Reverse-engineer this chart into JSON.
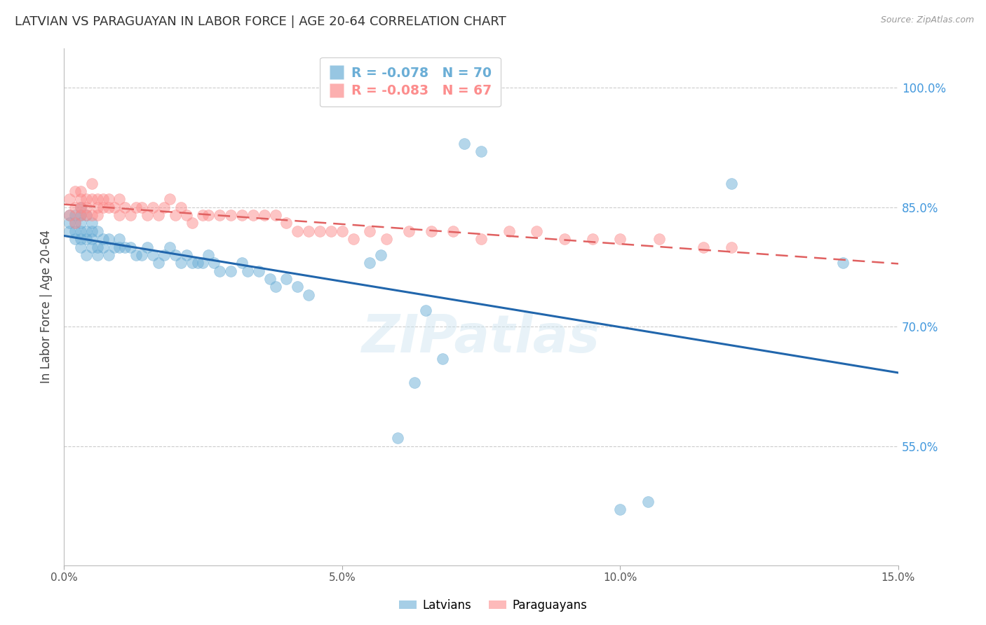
{
  "title": "LATVIAN VS PARAGUAYAN IN LABOR FORCE | AGE 20-64 CORRELATION CHART",
  "source": "Source: ZipAtlas.com",
  "ylabel": "In Labor Force | Age 20-64",
  "xlim": [
    0.0,
    0.15
  ],
  "ylim": [
    0.4,
    1.05
  ],
  "yticks": [
    0.55,
    0.7,
    0.85,
    1.0
  ],
  "ytick_labels": [
    "55.0%",
    "70.0%",
    "85.0%",
    "100.0%"
  ],
  "xticks": [
    0.0,
    0.05,
    0.1,
    0.15
  ],
  "xtick_labels": [
    "0.0%",
    "5.0%",
    "10.0%",
    "15.0%"
  ],
  "latvian_R": -0.078,
  "latvian_N": 70,
  "paraguayan_R": -0.083,
  "paraguayan_N": 67,
  "latvian_color": "#6baed6",
  "paraguayan_color": "#fc8d8d",
  "trend_latvian_color": "#2166ac",
  "trend_paraguayan_color": "#e06060",
  "background_color": "#ffffff",
  "grid_color": "#cccccc",
  "title_color": "#333333",
  "axis_label_color": "#444444",
  "right_tick_color": "#4499dd",
  "watermark": "ZIPatlas",
  "latvian_x": [
    0.001,
    0.001,
    0.001,
    0.002,
    0.002,
    0.002,
    0.002,
    0.003,
    0.003,
    0.003,
    0.003,
    0.003,
    0.003,
    0.004,
    0.004,
    0.004,
    0.004,
    0.005,
    0.005,
    0.005,
    0.005,
    0.006,
    0.006,
    0.006,
    0.007,
    0.007,
    0.008,
    0.008,
    0.009,
    0.01,
    0.01,
    0.011,
    0.012,
    0.013,
    0.014,
    0.015,
    0.016,
    0.017,
    0.018,
    0.019,
    0.02,
    0.021,
    0.022,
    0.023,
    0.024,
    0.025,
    0.026,
    0.027,
    0.028,
    0.03,
    0.032,
    0.033,
    0.035,
    0.037,
    0.038,
    0.04,
    0.042,
    0.044,
    0.055,
    0.057,
    0.06,
    0.063,
    0.065,
    0.068,
    0.072,
    0.075,
    0.1,
    0.105,
    0.12,
    0.14
  ],
  "latvian_y": [
    0.82,
    0.83,
    0.84,
    0.81,
    0.82,
    0.83,
    0.84,
    0.8,
    0.81,
    0.82,
    0.83,
    0.84,
    0.85,
    0.79,
    0.81,
    0.82,
    0.84,
    0.8,
    0.81,
    0.82,
    0.83,
    0.79,
    0.8,
    0.82,
    0.8,
    0.81,
    0.79,
    0.81,
    0.8,
    0.81,
    0.8,
    0.8,
    0.8,
    0.79,
    0.79,
    0.8,
    0.79,
    0.78,
    0.79,
    0.8,
    0.79,
    0.78,
    0.79,
    0.78,
    0.78,
    0.78,
    0.79,
    0.78,
    0.77,
    0.77,
    0.78,
    0.77,
    0.77,
    0.76,
    0.75,
    0.76,
    0.75,
    0.74,
    0.78,
    0.79,
    0.56,
    0.63,
    0.72,
    0.66,
    0.93,
    0.92,
    0.47,
    0.48,
    0.88,
    0.78
  ],
  "paraguayan_x": [
    0.001,
    0.001,
    0.002,
    0.002,
    0.002,
    0.003,
    0.003,
    0.003,
    0.003,
    0.004,
    0.004,
    0.004,
    0.005,
    0.005,
    0.005,
    0.006,
    0.006,
    0.006,
    0.007,
    0.007,
    0.008,
    0.008,
    0.009,
    0.01,
    0.01,
    0.011,
    0.012,
    0.013,
    0.014,
    0.015,
    0.016,
    0.017,
    0.018,
    0.019,
    0.02,
    0.021,
    0.022,
    0.023,
    0.025,
    0.026,
    0.028,
    0.03,
    0.032,
    0.034,
    0.036,
    0.038,
    0.04,
    0.042,
    0.044,
    0.046,
    0.048,
    0.05,
    0.052,
    0.055,
    0.058,
    0.062,
    0.066,
    0.07,
    0.075,
    0.08,
    0.085,
    0.09,
    0.095,
    0.1,
    0.107,
    0.115,
    0.12
  ],
  "paraguayan_y": [
    0.84,
    0.86,
    0.83,
    0.85,
    0.87,
    0.84,
    0.85,
    0.86,
    0.87,
    0.84,
    0.85,
    0.86,
    0.84,
    0.86,
    0.88,
    0.84,
    0.85,
    0.86,
    0.85,
    0.86,
    0.85,
    0.86,
    0.85,
    0.84,
    0.86,
    0.85,
    0.84,
    0.85,
    0.85,
    0.84,
    0.85,
    0.84,
    0.85,
    0.86,
    0.84,
    0.85,
    0.84,
    0.83,
    0.84,
    0.84,
    0.84,
    0.84,
    0.84,
    0.84,
    0.84,
    0.84,
    0.83,
    0.82,
    0.82,
    0.82,
    0.82,
    0.82,
    0.81,
    0.82,
    0.81,
    0.82,
    0.82,
    0.82,
    0.81,
    0.82,
    0.82,
    0.81,
    0.81,
    0.81,
    0.81,
    0.8,
    0.8
  ]
}
